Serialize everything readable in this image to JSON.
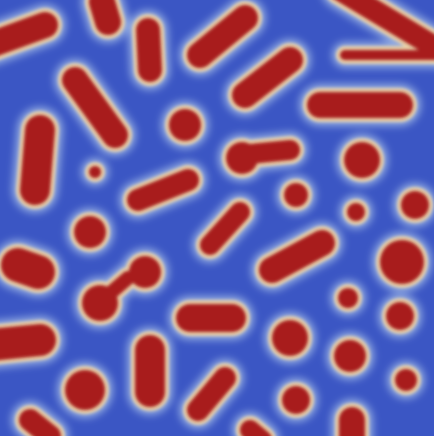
{
  "image": {
    "subject": "turing-pattern-field",
    "colors": {
      "background": "#3b56c4",
      "spot_core": "#a81c1c",
      "spot_rim": "#e8d0a8",
      "halo": "#8fa8e0"
    }
  }
}
